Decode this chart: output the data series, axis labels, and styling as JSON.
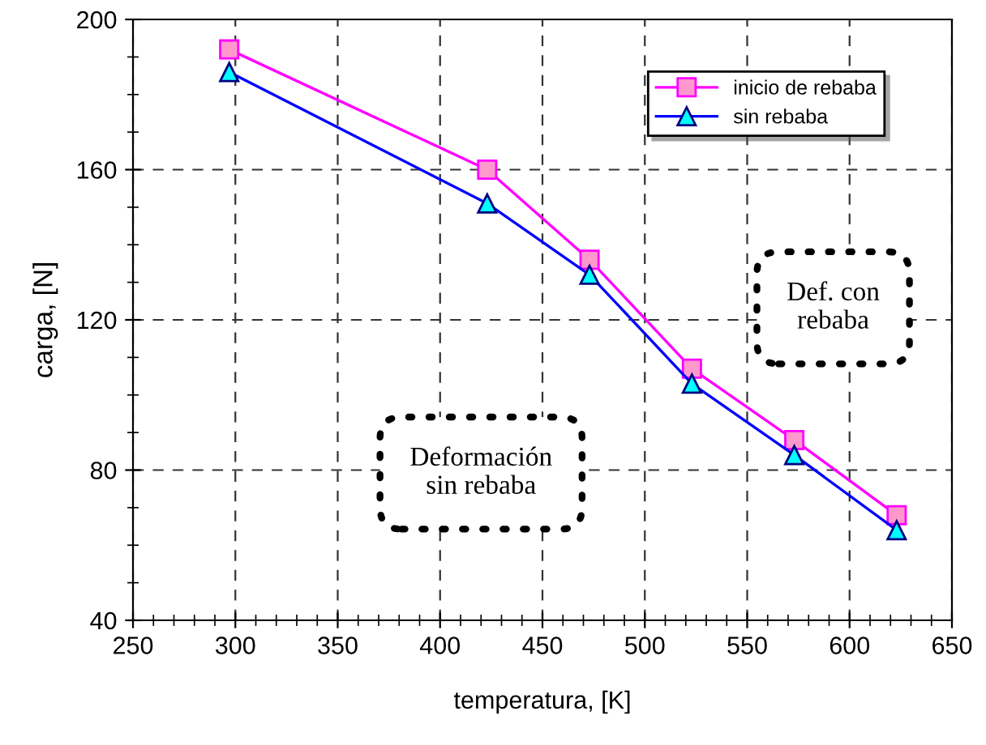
{
  "chart_data": {
    "type": "line",
    "xlabel": "temperatura, [K]",
    "ylabel": "carga, [N]",
    "xlim": [
      250,
      650
    ],
    "xticks": [
      250,
      300,
      350,
      400,
      450,
      500,
      550,
      600,
      650
    ],
    "ylim": [
      40,
      200
    ],
    "yticks": [
      40,
      80,
      120,
      160,
      200
    ],
    "grid": true,
    "legend": "top right",
    "line_style": "solid",
    "series": [
      {
        "name": "inicio de rebaba",
        "color": "#ff00ff",
        "marker": "square",
        "x": [
          297,
          423,
          473,
          523,
          573,
          623
        ],
        "values": [
          192,
          160,
          136,
          107,
          88,
          68
        ]
      },
      {
        "name": "sin rebaba",
        "color": "#0000ff",
        "marker": "triangle",
        "x": [
          297,
          423,
          473,
          523,
          573,
          623
        ],
        "values": [
          186,
          151,
          132,
          103,
          84,
          64
        ]
      }
    ],
    "annotations": [
      "Deformación\nsin rebaba",
      "Def. con\nrebaba"
    ]
  }
}
